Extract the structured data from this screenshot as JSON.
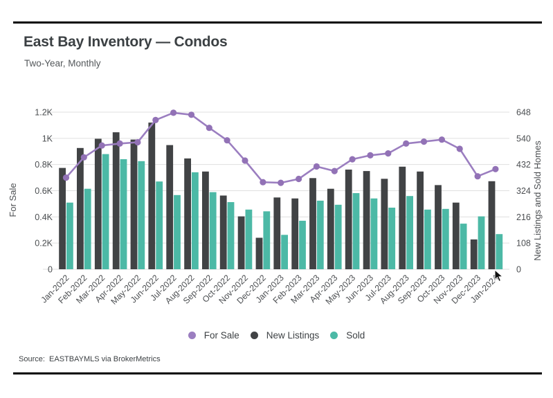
{
  "header": {
    "title": "East Bay Inventory — Condos",
    "subtitle": "Two-Year, Monthly"
  },
  "source": "Source:  EASTBAYMLS via BrokerMetrics",
  "legend": [
    {
      "label": "For Sale",
      "color": "#9b7ec0"
    },
    {
      "label": "New Listings",
      "color": "#414345"
    },
    {
      "label": "Sold",
      "color": "#4cb9a6"
    }
  ],
  "chart_data": {
    "type": "bar",
    "subtype": "grouped bars + line overlay",
    "categories": [
      "Jan-2022",
      "Feb-2022",
      "Mar-2022",
      "Apr-2022",
      "May-2022",
      "Jun-2022",
      "Jul-2022",
      "Aug-2022",
      "Sep-2022",
      "Oct-2022",
      "Nov-2022",
      "Dec-2022",
      "Jan-2023",
      "Feb-2023",
      "Mar-2023",
      "Apr-2023",
      "May-2023",
      "Jun-2023",
      "Jul-2023",
      "Aug-2023",
      "Sep-2023",
      "Oct-2023",
      "Nov-2023",
      "Dec-2023",
      "Jan-2024"
    ],
    "series": [
      {
        "name": "For Sale",
        "type": "line",
        "axis": "left",
        "color": "#9b7ec0",
        "values": [
          700,
          855,
          945,
          960,
          970,
          1140,
          1195,
          1180,
          1080,
          985,
          830,
          665,
          660,
          690,
          785,
          750,
          840,
          870,
          885,
          960,
          975,
          990,
          920,
          710,
          765
        ]
      },
      {
        "name": "New Listings",
        "type": "bar",
        "axis": "right",
        "color": "#414345",
        "values": [
          418,
          500,
          538,
          565,
          535,
          605,
          512,
          457,
          403,
          304,
          218,
          130,
          296,
          292,
          376,
          332,
          411,
          405,
          373,
          423,
          403,
          347,
          275,
          123,
          363
        ]
      },
      {
        "name": "Sold",
        "type": "bar",
        "axis": "right",
        "color": "#4cb9a6",
        "values": [
          275,
          332,
          475,
          454,
          446,
          362,
          306,
          400,
          318,
          277,
          246,
          239,
          142,
          200,
          283,
          266,
          314,
          292,
          254,
          302,
          246,
          249,
          188,
          218,
          145
        ]
      }
    ],
    "left_axis": {
      "label": "For Sale",
      "min": 0,
      "max": 1200,
      "ticks": [
        "0",
        "0.2K",
        "0.4K",
        "0.6K",
        "0.8K",
        "1K",
        "1.2K"
      ]
    },
    "right_axis": {
      "label": "New Listings and Sold Homes",
      "min": 0,
      "max": 648,
      "ticks": [
        "0",
        "108",
        "216",
        "324",
        "432",
        "540",
        "648"
      ]
    },
    "grid": "horizontal only",
    "legend_position": "bottom center"
  }
}
